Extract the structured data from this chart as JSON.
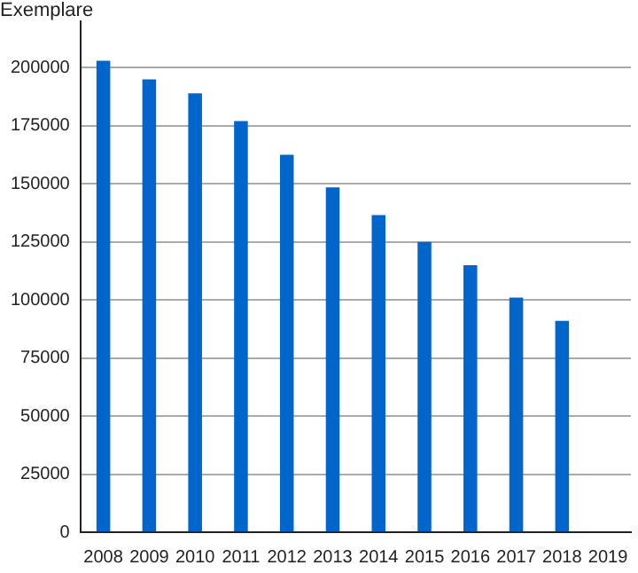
{
  "chart_data": {
    "type": "bar",
    "ylabel": "Exemplare",
    "categories": [
      "2008",
      "2009",
      "2010",
      "2011",
      "2012",
      "2013",
      "2014",
      "2015",
      "2016",
      "2017",
      "2018",
      "2019"
    ],
    "values": [
      203000,
      195000,
      189000,
      177000,
      162500,
      148500,
      136500,
      125000,
      115000,
      101000,
      91000,
      null
    ],
    "color": "#0066cc",
    "ylim": [
      0,
      220000
    ],
    "yticks": [
      0,
      25000,
      50000,
      75000,
      100000,
      125000,
      150000,
      175000,
      200000
    ],
    "grid": "y",
    "legend": false
  }
}
